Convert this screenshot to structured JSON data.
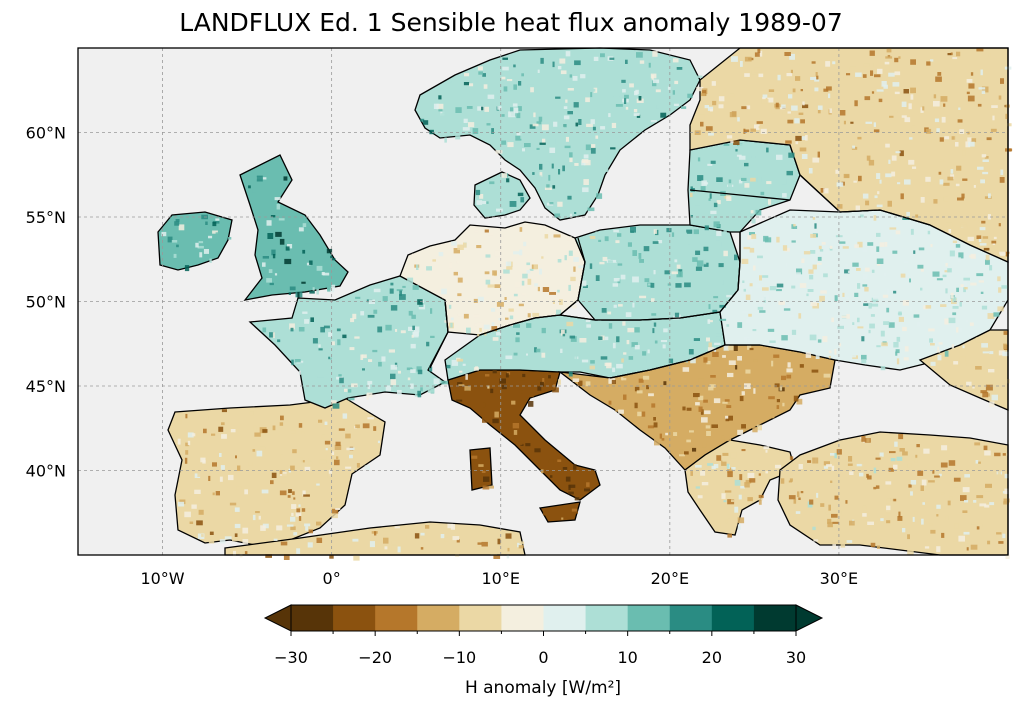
{
  "title": "LANDFLUX Ed. 1 Sensible heat flux anomaly 1989-07",
  "map": {
    "projection": "PlateCarree",
    "extent": {
      "lon_min": -15,
      "lon_max": 40,
      "lat_min": 35,
      "lat_max": 65
    },
    "background_color": "#f0f0f0",
    "gridlines": true,
    "lon_ticks": [
      -10,
      0,
      10,
      20,
      30
    ],
    "lat_ticks": [
      40,
      45,
      50,
      55,
      60
    ],
    "lon_tick_labels": [
      "10°W",
      "0°",
      "10°E",
      "20°E",
      "30°E"
    ],
    "lat_tick_labels": [
      "40°N",
      "45°N",
      "50°N",
      "55°N",
      "60°N"
    ]
  },
  "colorbar": {
    "label": "H anomaly [W/m²]",
    "ticks": [
      -30,
      -20,
      -10,
      0,
      10,
      20,
      30
    ],
    "tick_labels": [
      "−30",
      "−20",
      "−10",
      "0",
      "10",
      "20",
      "30"
    ],
    "bounds": [
      -30,
      -25,
      -20,
      -15,
      -10,
      -5,
      0,
      5,
      10,
      15,
      20,
      25,
      30
    ],
    "colors": [
      "#573408",
      "#8b520f",
      "#b5772b",
      "#d5ac63",
      "#ebd8a5",
      "#f4efdf",
      "#e0f0ee",
      "#addfd6",
      "#6abdb0",
      "#2a8c83",
      "#026257",
      "#003a30"
    ],
    "extend": "both"
  },
  "regions": [
    {
      "name": "Iberia",
      "value": -9
    },
    {
      "name": "France",
      "value": 8
    },
    {
      "name": "Great Britain",
      "value": 14
    },
    {
      "name": "Ireland",
      "value": 10
    },
    {
      "name": "Italy",
      "value": -22
    },
    {
      "name": "Germany",
      "value": -3
    },
    {
      "name": "Poland",
      "value": 7
    },
    {
      "name": "Scandinavia",
      "value": 9
    },
    {
      "name": "Balkans",
      "value": -13
    },
    {
      "name": "Hungary",
      "value": 6
    },
    {
      "name": "Ukraine",
      "value": 3
    },
    {
      "name": "Russia",
      "value": -8
    },
    {
      "name": "Turkey",
      "value": -7
    },
    {
      "name": "Greece",
      "value": -6
    }
  ]
}
